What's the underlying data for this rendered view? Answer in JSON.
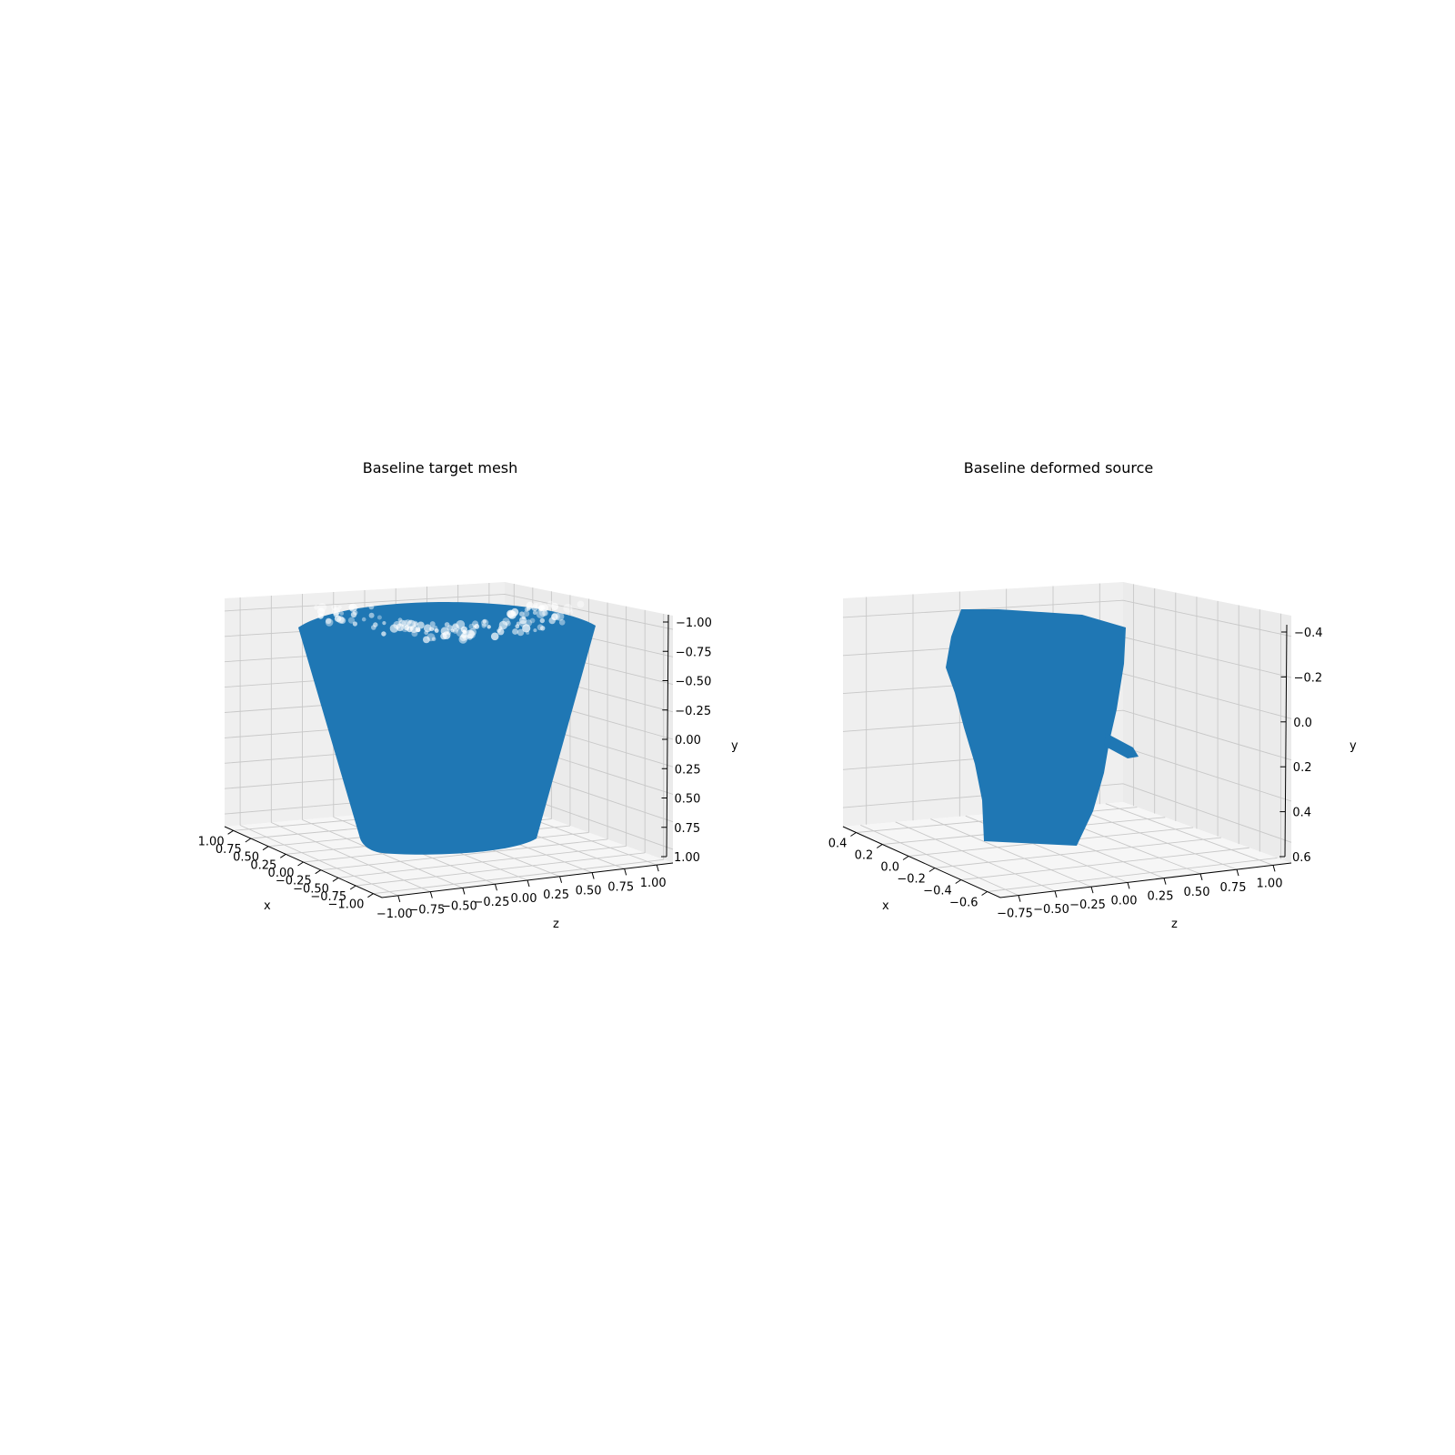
{
  "colors": {
    "series": "#1f77b4",
    "pane": "#f2f2f2",
    "grid": "#c8c8c8"
  },
  "chart_data": [
    {
      "type": "scatter",
      "projection": "3d",
      "title": "Baseline target mesh",
      "xlabel": "x",
      "ylabel": "y",
      "zlabel": "z",
      "xlim": [
        -1.0,
        1.0
      ],
      "ylim": [
        -1.0,
        1.0
      ],
      "zlim": [
        -1.0,
        1.0
      ],
      "y_inverted": true,
      "x_ticks": [
        "1.00",
        "0.75",
        "0.50",
        "0.25",
        "0.00",
        "−0.25",
        "−0.50",
        "−0.75",
        "−1.00"
      ],
      "z_ticks": [
        "−1.00",
        "−0.75",
        "−0.50",
        "−0.25",
        "0.00",
        "0.25",
        "0.50",
        "0.75",
        "1.00"
      ],
      "y_ticks": [
        "−1.00",
        "−0.75",
        "−0.50",
        "−0.25",
        "0.00",
        "0.25",
        "0.50",
        "0.75",
        "1.00"
      ],
      "grid": true,
      "shape": "truncated cone (frustum) point cloud: top radius ~1.0, bottom radius ~0.6, spanning y from -0.9 to 0.9",
      "series": [
        {
          "color": "#1f77b4"
        }
      ]
    },
    {
      "type": "scatter",
      "projection": "3d",
      "title": "Baseline deformed source",
      "xlabel": "x",
      "ylabel": "y",
      "zlabel": "z",
      "xlim": [
        -0.6,
        0.45
      ],
      "ylim": [
        -0.5,
        0.7
      ],
      "zlim": [
        -0.85,
        1.0
      ],
      "y_inverted": true,
      "x_ticks": [
        "0.4",
        "0.2",
        "0.0",
        "−0.2",
        "−0.4",
        "−0.6"
      ],
      "z_ticks": [
        "−0.75",
        "−0.50",
        "−0.25",
        "0.00",
        "0.25",
        "0.50",
        "0.75",
        "1.00"
      ],
      "y_ticks": [
        "−0.4",
        "−0.2",
        "0.0",
        "0.2",
        "0.4",
        "0.6"
      ],
      "grid": true,
      "shape": "irregular deformed blob point cloud with a small spike protruding to the right",
      "series": [
        {
          "color": "#1f77b4"
        }
      ]
    }
  ]
}
